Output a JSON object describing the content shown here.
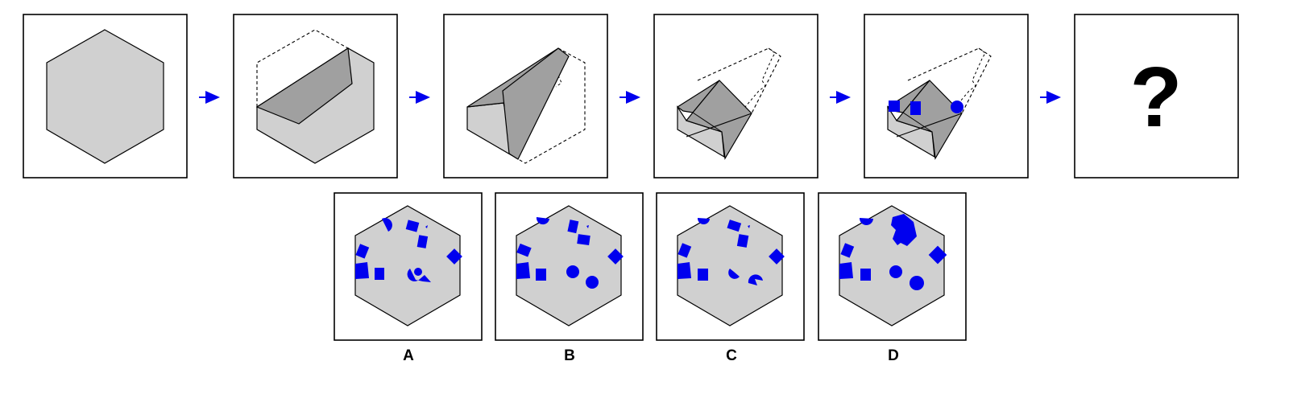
{
  "question_mark": "?",
  "options": [
    {
      "label": "A"
    },
    {
      "label": "B"
    },
    {
      "label": "C"
    },
    {
      "label": "D"
    }
  ],
  "colors": {
    "paper_fill": "#d0d0d0",
    "fold_fill": "#a0a0a0",
    "punch_fill": "#0000ee",
    "arrow": "#0000ee",
    "outline": "#000000"
  }
}
